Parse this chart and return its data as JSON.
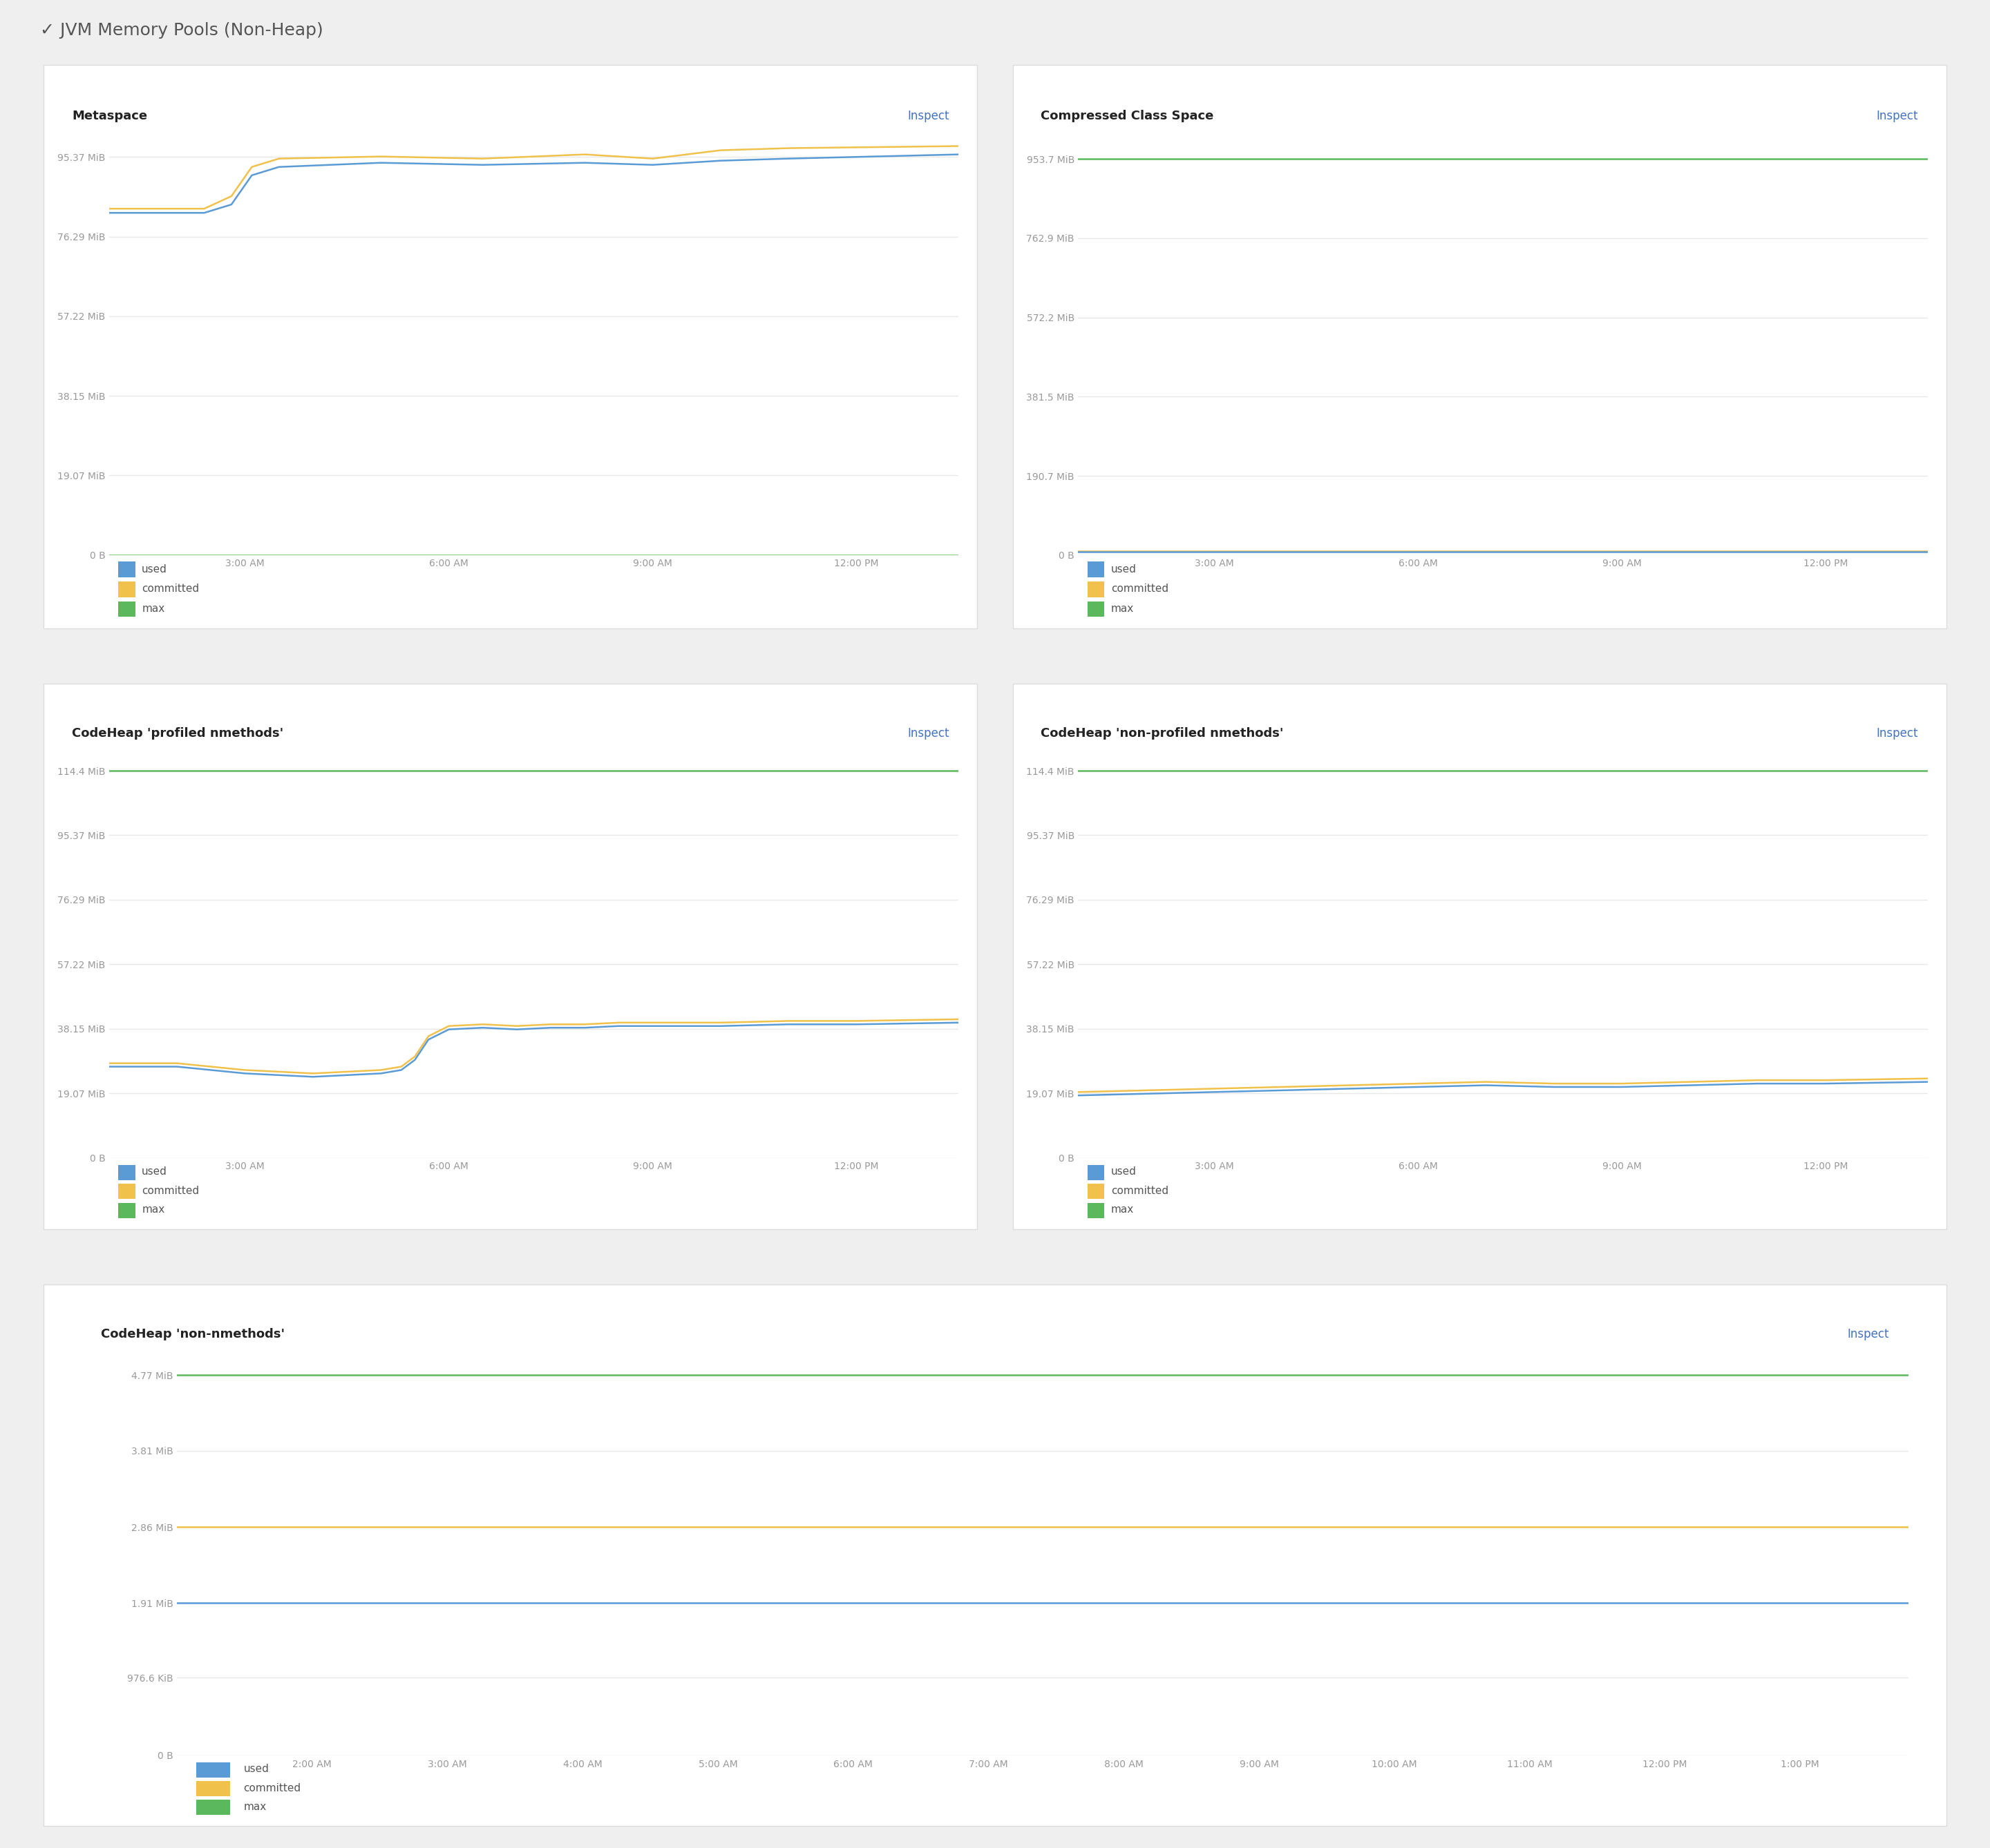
{
  "main_title": "✓ JVM Memory Pools (Non-Heap)",
  "bg_color": "#efefef",
  "panel_bg": "#ffffff",
  "panels": [
    {
      "title": "Metaspace",
      "yticks": [
        "0 B",
        "19.07 MiB",
        "38.15 MiB",
        "57.22 MiB",
        "76.29 MiB",
        "95.37 MiB"
      ],
      "yvals": [
        0,
        19.07,
        38.15,
        57.22,
        76.29,
        95.37
      ],
      "ymax": 104,
      "xticks": [
        "3:00 AM",
        "6:00 AM",
        "9:00 AM",
        "12:00 PM"
      ],
      "xvals": [
        3,
        6,
        9,
        12
      ],
      "xmin": 1,
      "xmax": 13.5,
      "lines": {
        "used": {
          "color": "#5b9bd5",
          "data": [
            [
              1,
              82
            ],
            [
              2.4,
              82
            ],
            [
              2.8,
              84
            ],
            [
              3.1,
              91
            ],
            [
              3.5,
              93
            ],
            [
              5,
              94
            ],
            [
              6.5,
              93.5
            ],
            [
              8,
              94
            ],
            [
              9,
              93.5
            ],
            [
              10,
              94.5
            ],
            [
              11,
              95
            ],
            [
              13.5,
              96
            ]
          ]
        },
        "committed": {
          "color": "#f0c14b",
          "data": [
            [
              1,
              83
            ],
            [
              2.4,
              83
            ],
            [
              2.8,
              86
            ],
            [
              3.1,
              93
            ],
            [
              3.5,
              95
            ],
            [
              5,
              95.5
            ],
            [
              6.5,
              95
            ],
            [
              8,
              96
            ],
            [
              9,
              95
            ],
            [
              10,
              97
            ],
            [
              11,
              97.5
            ],
            [
              13.5,
              98
            ]
          ]
        },
        "max": {
          "color": "#5cb85c",
          "data": [
            [
              1,
              0
            ],
            [
              13.5,
              0
            ]
          ]
        }
      },
      "legend": [
        "used",
        "committed",
        "max"
      ],
      "legend_colors": [
        "#5b9bd5",
        "#f0c14b",
        "#5cb85c"
      ]
    },
    {
      "title": "Compressed Class Space",
      "yticks": [
        "0 B",
        "190.7 MiB",
        "381.5 MiB",
        "572.2 MiB",
        "762.9 MiB",
        "953.7 MiB"
      ],
      "yvals": [
        0,
        190.7,
        381.5,
        572.2,
        762.9,
        953.7
      ],
      "ymax": 1045,
      "xticks": [
        "3:00 AM",
        "6:00 AM",
        "9:00 AM",
        "12:00 PM"
      ],
      "xvals": [
        3,
        6,
        9,
        12
      ],
      "xmin": 1,
      "xmax": 13.5,
      "lines": {
        "used": {
          "color": "#5b9bd5",
          "data": [
            [
              1,
              8
            ],
            [
              13.5,
              8
            ]
          ]
        },
        "committed": {
          "color": "#f0c14b",
          "data": [
            [
              1,
              10
            ],
            [
              13.5,
              10
            ]
          ]
        },
        "max": {
          "color": "#5cb85c",
          "data": [
            [
              1,
              953.7
            ],
            [
              13.5,
              953.7
            ]
          ]
        }
      },
      "legend": [
        "used",
        "committed",
        "max"
      ],
      "legend_colors": [
        "#5b9bd5",
        "#f0c14b",
        "#5cb85c"
      ]
    },
    {
      "title": "CodeHeap 'profiled nmethods'",
      "yticks": [
        "0 B",
        "19.07 MiB",
        "38.15 MiB",
        "57.22 MiB",
        "76.29 MiB",
        "95.37 MiB",
        "114.4 MiB"
      ],
      "yvals": [
        0,
        19.07,
        38.15,
        57.22,
        76.29,
        95.37,
        114.4
      ],
      "ymax": 124,
      "xticks": [
        "3:00 AM",
        "6:00 AM",
        "9:00 AM",
        "12:00 PM"
      ],
      "xvals": [
        3,
        6,
        9,
        12
      ],
      "xmin": 1,
      "xmax": 13.5,
      "lines": {
        "used": {
          "color": "#5b9bd5",
          "data": [
            [
              1,
              27
            ],
            [
              2,
              27
            ],
            [
              2.5,
              26
            ],
            [
              3,
              25
            ],
            [
              3.5,
              24.5
            ],
            [
              4,
              24
            ],
            [
              4.5,
              24.5
            ],
            [
              5,
              25
            ],
            [
              5.3,
              26
            ],
            [
              5.5,
              29
            ],
            [
              5.7,
              35
            ],
            [
              6,
              38
            ],
            [
              6.5,
              38.5
            ],
            [
              7,
              38
            ],
            [
              7.5,
              38.5
            ],
            [
              8,
              38.5
            ],
            [
              8.5,
              39
            ],
            [
              9,
              39
            ],
            [
              10,
              39
            ],
            [
              11,
              39.5
            ],
            [
              12,
              39.5
            ],
            [
              13.5,
              40
            ]
          ]
        },
        "committed": {
          "color": "#f0c14b",
          "data": [
            [
              1,
              28
            ],
            [
              2,
              28
            ],
            [
              2.5,
              27
            ],
            [
              3,
              26
            ],
            [
              3.5,
              25.5
            ],
            [
              4,
              25
            ],
            [
              4.5,
              25.5
            ],
            [
              5,
              26
            ],
            [
              5.3,
              27
            ],
            [
              5.5,
              30
            ],
            [
              5.7,
              36
            ],
            [
              6,
              39
            ],
            [
              6.5,
              39.5
            ],
            [
              7,
              39
            ],
            [
              7.5,
              39.5
            ],
            [
              8,
              39.5
            ],
            [
              8.5,
              40
            ],
            [
              9,
              40
            ],
            [
              10,
              40
            ],
            [
              11,
              40.5
            ],
            [
              12,
              40.5
            ],
            [
              13.5,
              41
            ]
          ]
        },
        "max": {
          "color": "#5cb85c",
          "data": [
            [
              1,
              114.4
            ],
            [
              13.5,
              114.4
            ]
          ]
        }
      },
      "legend": [
        "used",
        "committed",
        "max"
      ],
      "legend_colors": [
        "#5b9bd5",
        "#f0c14b",
        "#5cb85c"
      ]
    },
    {
      "title": "CodeHeap 'non-profiled nmethods'",
      "yticks": [
        "0 B",
        "19.07 MiB",
        "38.15 MiB",
        "57.22 MiB",
        "76.29 MiB",
        "95.37 MiB",
        "114.4 MiB"
      ],
      "yvals": [
        0,
        19.07,
        38.15,
        57.22,
        76.29,
        95.37,
        114.4
      ],
      "ymax": 124,
      "xticks": [
        "3:00 AM",
        "6:00 AM",
        "9:00 AM",
        "12:00 PM"
      ],
      "xvals": [
        3,
        6,
        9,
        12
      ],
      "xmin": 1,
      "xmax": 13.5,
      "lines": {
        "used": {
          "color": "#5b9bd5",
          "data": [
            [
              1,
              18.5
            ],
            [
              2,
              19
            ],
            [
              3,
              19.5
            ],
            [
              4,
              20
            ],
            [
              5,
              20.5
            ],
            [
              6,
              21
            ],
            [
              7,
              21.5
            ],
            [
              8,
              21
            ],
            [
              9,
              21
            ],
            [
              10,
              21.5
            ],
            [
              11,
              22
            ],
            [
              12,
              22
            ],
            [
              13.5,
              22.5
            ]
          ]
        },
        "committed": {
          "color": "#f0c14b",
          "data": [
            [
              1,
              19.5
            ],
            [
              2,
              20
            ],
            [
              3,
              20.5
            ],
            [
              4,
              21
            ],
            [
              5,
              21.5
            ],
            [
              6,
              22
            ],
            [
              7,
              22.5
            ],
            [
              8,
              22
            ],
            [
              9,
              22
            ],
            [
              10,
              22.5
            ],
            [
              11,
              23
            ],
            [
              12,
              23
            ],
            [
              13.5,
              23.5
            ]
          ]
        },
        "max": {
          "color": "#5cb85c",
          "data": [
            [
              1,
              114.4
            ],
            [
              13.5,
              114.4
            ]
          ]
        }
      },
      "legend": [
        "used",
        "committed",
        "max"
      ],
      "legend_colors": [
        "#5b9bd5",
        "#f0c14b",
        "#5cb85c"
      ]
    },
    {
      "title": "CodeHeap 'non-nmethods'",
      "yticks": [
        "0 B",
        "976.6 KiB",
        "1.91 MiB",
        "2.86 MiB",
        "3.81 MiB",
        "4.77 MiB"
      ],
      "yvals": [
        0,
        0.9537,
        1.865,
        2.795,
        3.725,
        4.654
      ],
      "ymax": 5.1,
      "xticks": [
        "2:00 AM",
        "3:00 AM",
        "4:00 AM",
        "5:00 AM",
        "6:00 AM",
        "7:00 AM",
        "8:00 AM",
        "9:00 AM",
        "10:00 AM",
        "11:00 AM",
        "12:00 PM",
        "1:00 PM"
      ],
      "xvals": [
        2,
        3,
        4,
        5,
        6,
        7,
        8,
        9,
        10,
        11,
        12,
        13
      ],
      "xmin": 1,
      "xmax": 13.8,
      "lines": {
        "used": {
          "color": "#5b9bd5",
          "data": [
            [
              1,
              1.87
            ],
            [
              13.8,
              1.87
            ]
          ]
        },
        "committed": {
          "color": "#f0c14b",
          "data": [
            [
              1,
              2.795
            ],
            [
              13.8,
              2.795
            ]
          ]
        },
        "max": {
          "color": "#5cb85c",
          "data": [
            [
              1,
              4.654
            ],
            [
              13.8,
              4.654
            ]
          ]
        }
      },
      "legend": [
        "used",
        "committed",
        "max"
      ],
      "legend_colors": [
        "#5b9bd5",
        "#f0c14b",
        "#5cb85c"
      ]
    }
  ],
  "inspect_color": "#4472c4",
  "axis_label_color": "#999999",
  "grid_color": "#e8e8e8",
  "title_fontsize": 18,
  "panel_title_fontsize": 13,
  "tick_fontsize": 10,
  "inspect_fontsize": 12,
  "legend_fontsize": 11
}
